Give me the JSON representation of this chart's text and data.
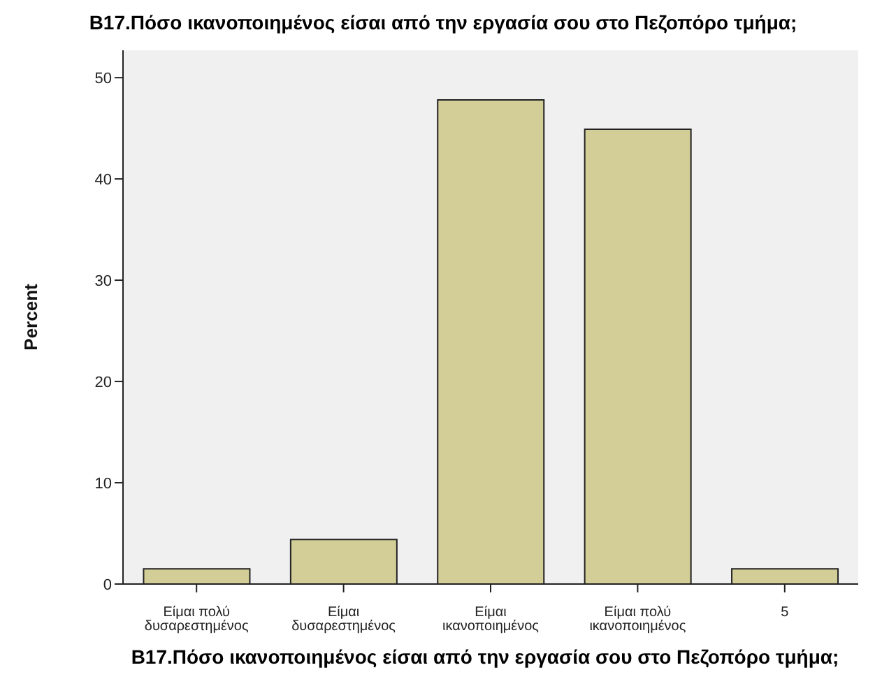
{
  "chart_data": {
    "type": "bar",
    "title": "B17.Πόσο ικανοποιημένος είσαι από την εργασία σου στο Πεζοπόρο τμήμα;",
    "xlabel": "B17.Πόσο ικανοποιημένος είσαι από την εργασία σου στο Πεζοπόρο τμήμα;",
    "ylabel": "Percent",
    "categories": [
      "Είμαι πολύ δυσαρεστημένος",
      "Είμαι δυσαρεστημένος",
      "Είμαι ικανοποιημένος",
      "Είμαι πολύ ικανοποιημένος",
      "5"
    ],
    "values": [
      1.5,
      4.4,
      47.8,
      44.9,
      1.5
    ],
    "color": "#d3ce97",
    "ylim": [
      0,
      52.7
    ],
    "yticks": [
      0,
      10,
      20,
      30,
      40,
      50
    ],
    "grid": false
  }
}
